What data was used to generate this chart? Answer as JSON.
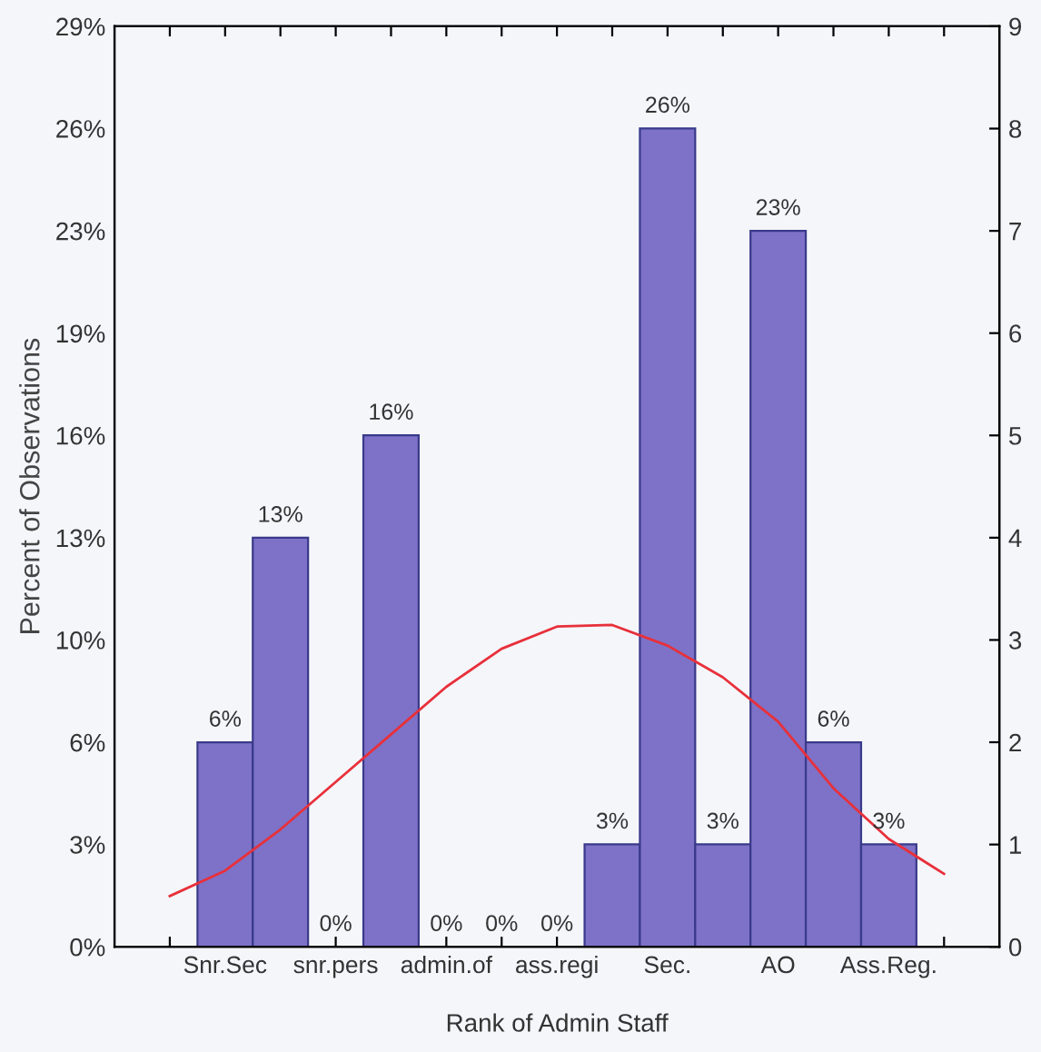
{
  "chart_data": {
    "type": "bar",
    "xlabel": "Rank of Admin Staff",
    "ylabel": "Percent of Observations",
    "categories": [
      null,
      "Snr.Sec",
      null,
      "snr.pers",
      null,
      "admin.of",
      null,
      "ass.regi",
      null,
      "Sec.",
      null,
      "AO",
      null,
      "Ass.Reg.",
      null
    ],
    "series": [
      {
        "color": "#7d72c8",
        "values": [
          null,
          6.45,
          12.9,
          0,
          16.13,
          0,
          0,
          0,
          3.23,
          25.81,
          3.23,
          22.58,
          6.45,
          3.23,
          null
        ],
        "value_labels": [
          null,
          "6%",
          "13%",
          "0%",
          "16%",
          "0%",
          "0%",
          "0%",
          "3%",
          "26%",
          "3%",
          "23%",
          "6%",
          "3%",
          null
        ]
      },
      {
        "type": "line",
        "color": "#e8303a",
        "values": [
          1.6,
          2.4,
          3.7,
          5.2,
          6.7,
          8.2,
          9.4,
          10.1,
          10.15,
          9.5,
          8.5,
          7.1,
          5.0,
          3.4,
          2.3
        ]
      }
    ],
    "ylim": [
      0,
      29.03
    ],
    "yticks": [
      {
        "value": 0,
        "label": "0%"
      },
      {
        "value": 3.23,
        "label": "3%"
      },
      {
        "value": 6.45,
        "label": "6%"
      },
      {
        "value": 9.68,
        "label": "10%"
      },
      {
        "value": 12.9,
        "label": "13%"
      },
      {
        "value": 16.13,
        "label": "16%"
      },
      {
        "value": 19.35,
        "label": "19%"
      },
      {
        "value": 22.58,
        "label": "23%"
      },
      {
        "value": 25.81,
        "label": "26%"
      },
      {
        "value": 29.03,
        "label": "29%"
      }
    ],
    "y2lim": [
      0,
      9
    ],
    "y2ticks": [
      0,
      1,
      2,
      3,
      4,
      5,
      6,
      7,
      8,
      9
    ],
    "grid": false
  }
}
